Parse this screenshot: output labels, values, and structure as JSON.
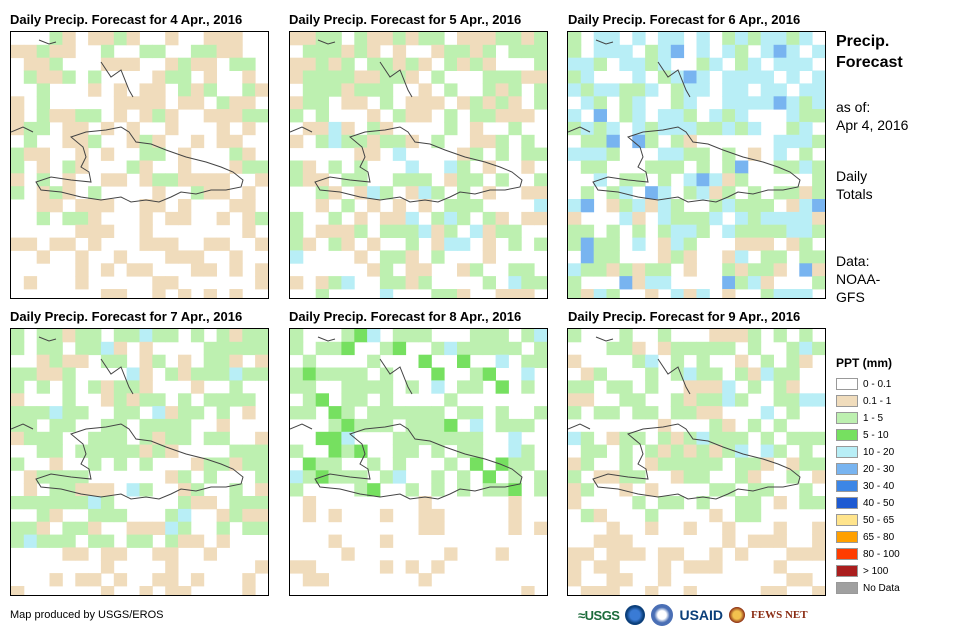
{
  "panels": [
    {
      "title": "Daily Precip. Forecast for 4 Apr., 2016",
      "day": 4
    },
    {
      "title": "Daily Precip. Forecast for 5 Apr., 2016",
      "day": 5
    },
    {
      "title": "Daily Precip. Forecast for 6 Apr., 2016",
      "day": 6
    },
    {
      "title": "Daily Precip. Forecast for 7 Apr., 2016",
      "day": 7
    },
    {
      "title": "Daily Precip. Forecast for 8 Apr., 2016",
      "day": 8
    },
    {
      "title": "Daily Precip. Forecast for 9 Apr., 2016",
      "day": 9
    }
  ],
  "sidebar": {
    "title_line1": "Precip.",
    "title_line2": "Forecast",
    "asof_line1": "as of:",
    "asof_line2": "Apr 4, 2016",
    "totals_line1": "Daily",
    "totals_line2": "Totals",
    "data_line1": "Data:",
    "data_line2": "NOAA-",
    "data_line3": "GFS"
  },
  "legend": {
    "title": "PPT (mm)",
    "items": [
      {
        "label": "0 - 0.1",
        "color": "#ffffff"
      },
      {
        "label": "0.1 - 1",
        "color": "#f0dcbc"
      },
      {
        "label": "1 - 5",
        "color": "#bdf0b0"
      },
      {
        "label": "5 - 10",
        "color": "#76e060"
      },
      {
        "label": "10 - 20",
        "color": "#b8eef6"
      },
      {
        "label": "20 - 30",
        "color": "#78b4f0"
      },
      {
        "label": "30 - 40",
        "color": "#3c86e6"
      },
      {
        "label": "40 - 50",
        "color": "#1e5ad2"
      },
      {
        "label": "50 - 65",
        "color": "#ffe48c"
      },
      {
        "label": "65 - 80",
        "color": "#ffa000"
      },
      {
        "label": "80 - 100",
        "color": "#ff3c00"
      },
      {
        "label": "> 100",
        "color": "#aa1e1e"
      },
      {
        "label": "No Data",
        "color": "#a0a0a0"
      }
    ]
  },
  "footer": {
    "credit": "Map produced by USGS/EROS",
    "logo_usgs": "≈USGS",
    "logo_usaid": "USAID",
    "logo_fews": "FEWS NET"
  }
}
